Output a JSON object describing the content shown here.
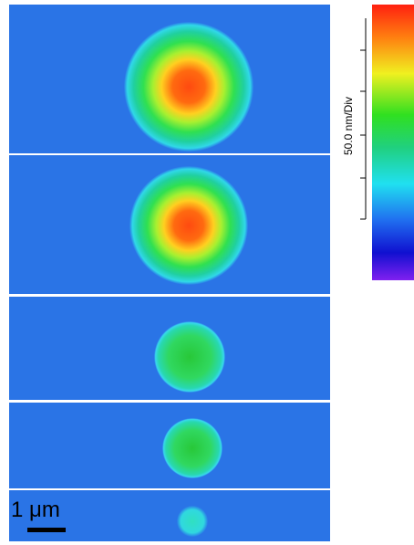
{
  "scale_bar": {
    "label": "1 μm"
  },
  "colorbar": {
    "label": "50.0 nm/Div"
  }
}
